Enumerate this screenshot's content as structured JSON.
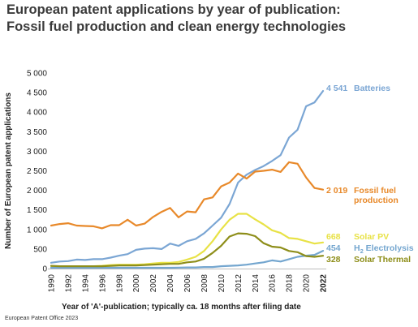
{
  "header": {
    "title_line1": "European patent applications by year of publication:",
    "title_line2": "Fossil fuel production and clean energy technologies"
  },
  "footer": {
    "source": "European Patent Office 2023"
  },
  "chart_data": {
    "type": "line",
    "x": [
      1990,
      1991,
      1992,
      1993,
      1994,
      1995,
      1996,
      1997,
      1998,
      1999,
      2000,
      2001,
      2002,
      2003,
      2004,
      2005,
      2006,
      2007,
      2008,
      2009,
      2010,
      2011,
      2012,
      2013,
      2014,
      2015,
      2016,
      2017,
      2018,
      2019,
      2020,
      2021,
      2022
    ],
    "x_ticks": [
      "1990",
      "1992",
      "1994",
      "1996",
      "1998",
      "2000",
      "2002",
      "2004",
      "2006",
      "2008",
      "2010",
      "2012",
      "2014",
      "2016",
      "2018",
      "2020",
      "2022"
    ],
    "xlabel": "Year of 'A'-publication; typically ca. 18 months after filing date",
    "ylabel": "Number of European patent applications",
    "ylim": [
      0,
      5000
    ],
    "y_ticks": [
      "0",
      "500",
      "1 000",
      "1 500",
      "2 000",
      "2 500",
      "3 000",
      "3 500",
      "4 000",
      "4 500",
      "5 000"
    ],
    "grid": false,
    "series": [
      {
        "name": "Batteries",
        "color": "#7ba6d4",
        "end_value": "4 541",
        "values": [
          150,
          180,
          190,
          230,
          220,
          240,
          240,
          280,
          330,
          370,
          480,
          510,
          520,
          500,
          640,
          580,
          700,
          760,
          900,
          1100,
          1300,
          1650,
          2200,
          2400,
          2520,
          2620,
          2750,
          2900,
          3350,
          3550,
          4150,
          4250,
          4541
        ]
      },
      {
        "name": "Fossil fuel production",
        "color": "#e8892a",
        "end_value": "2 019",
        "label_lines": [
          "Fossil fuel",
          "production"
        ],
        "values": [
          1100,
          1140,
          1160,
          1100,
          1090,
          1080,
          1030,
          1110,
          1110,
          1250,
          1100,
          1150,
          1320,
          1450,
          1550,
          1310,
          1460,
          1440,
          1770,
          1820,
          2100,
          2200,
          2430,
          2300,
          2480,
          2500,
          2530,
          2470,
          2720,
          2680,
          2330,
          2060,
          2019
        ]
      },
      {
        "name": "Solar PV",
        "color": "#e8e246",
        "end_value": "668",
        "values": [
          30,
          40,
          50,
          50,
          60,
          60,
          70,
          90,
          100,
          100,
          100,
          110,
          130,
          150,
          150,
          170,
          230,
          300,
          450,
          700,
          1000,
          1250,
          1400,
          1400,
          1260,
          1130,
          980,
          910,
          780,
          760,
          700,
          640,
          668
        ]
      },
      {
        "name": "H2 Electrolysis",
        "name_base": "H",
        "name_sub": "2",
        "name_rest": " Electrolysis",
        "color": "#74a6cf",
        "end_value": "454",
        "values": [
          20,
          20,
          20,
          20,
          20,
          20,
          20,
          20,
          20,
          20,
          20,
          20,
          20,
          20,
          20,
          25,
          30,
          30,
          40,
          40,
          60,
          70,
          80,
          100,
          130,
          160,
          210,
          180,
          240,
          300,
          330,
          350,
          454
        ]
      },
      {
        "name": "Solar Thermal",
        "color": "#8e8e1a",
        "end_value": "328",
        "values": [
          70,
          60,
          60,
          60,
          60,
          60,
          60,
          70,
          80,
          80,
          80,
          90,
          100,
          110,
          120,
          120,
          160,
          180,
          250,
          400,
          580,
          820,
          900,
          890,
          830,
          650,
          560,
          540,
          450,
          420,
          320,
          300,
          328
        ]
      }
    ]
  }
}
